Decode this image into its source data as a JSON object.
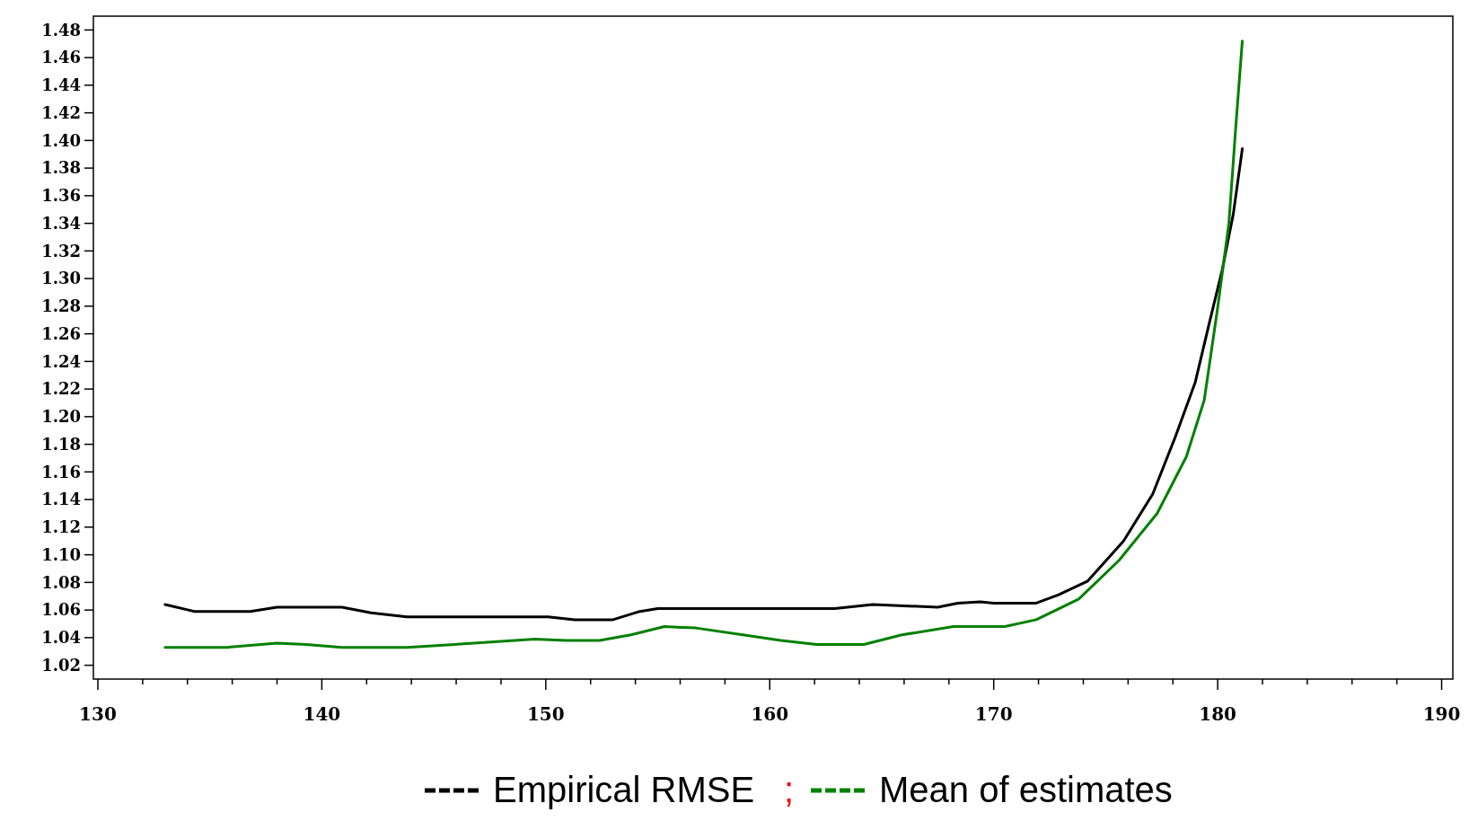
{
  "chart_data": {
    "type": "line",
    "xlim": [
      129.8,
      190.5
    ],
    "ylim": [
      1.01,
      1.49
    ],
    "xticks": [
      130,
      {
        "value": 132,
        "label": null
      },
      {
        "value": 134,
        "label": null
      },
      {
        "value": 136,
        "label": null
      },
      {
        "value": 138,
        "label": null
      },
      140,
      {
        "value": 142,
        "label": null
      },
      {
        "value": 144,
        "label": null
      },
      {
        "value": 146,
        "label": null
      },
      {
        "value": 148,
        "label": null
      },
      150,
      {
        "value": 152,
        "label": null
      },
      {
        "value": 154,
        "label": null
      },
      {
        "value": 156,
        "label": null
      },
      {
        "value": 158,
        "label": null
      },
      160,
      {
        "value": 162,
        "label": null
      },
      {
        "value": 164,
        "label": null
      },
      {
        "value": 166,
        "label": null
      },
      {
        "value": 168,
        "label": null
      },
      170,
      {
        "value": 172,
        "label": null
      },
      {
        "value": 174,
        "label": null
      },
      {
        "value": 176,
        "label": null
      },
      {
        "value": 178,
        "label": null
      },
      180,
      {
        "value": 182,
        "label": null
      },
      {
        "value": 184,
        "label": null
      },
      {
        "value": 186,
        "label": null
      },
      {
        "value": 188,
        "label": null
      },
      190
    ],
    "yticks": [
      1.02,
      1.04,
      1.06,
      1.08,
      {
        "value": 1.1,
        "label": "1.10"
      },
      1.12,
      1.14,
      1.16,
      1.18,
      {
        "value": 1.2,
        "label": "1.20"
      },
      1.22,
      1.24,
      1.26,
      1.28,
      {
        "value": 1.3,
        "label": "1.30"
      },
      1.32,
      1.34,
      1.36,
      1.38,
      {
        "value": 1.4,
        "label": "1.40"
      },
      1.42,
      1.44,
      1.46,
      1.48
    ],
    "grid": false,
    "legend": "bottom",
    "line_style": "solid",
    "marker": "none",
    "annotations": [
      ";"
    ],
    "series": [
      {
        "name": "Empirical RMSE",
        "color": "#000000",
        "x": [
          133,
          134.3,
          136.8,
          138,
          140.9,
          142.2,
          143.8,
          150.1,
          151.3,
          153,
          154.2,
          155,
          162.9,
          164.6,
          167.5,
          168.4,
          169.4,
          170,
          171.9,
          172.9,
          174.2,
          175.8,
          177.1,
          178.1,
          179,
          179.6,
          180.2,
          180.7,
          181.1
        ],
        "values": [
          1.064,
          1.059,
          1.059,
          1.062,
          1.062,
          1.058,
          1.055,
          1.055,
          1.053,
          1.053,
          1.059,
          1.061,
          1.061,
          1.064,
          1.062,
          1.065,
          1.066,
          1.065,
          1.065,
          1.071,
          1.081,
          1.11,
          1.144,
          1.185,
          1.225,
          1.266,
          1.306,
          1.347,
          1.394
        ]
      },
      {
        "name": "Mean of estimates",
        "color": "#008000",
        "x": [
          133,
          135.8,
          138,
          139.3,
          140.9,
          143.8,
          146.8,
          149.5,
          150.9,
          152.4,
          153.8,
          155.3,
          156.7,
          158.8,
          160.5,
          162.1,
          164.2,
          165.9,
          168.2,
          170.5,
          171.9,
          173.8,
          175.6,
          177.3,
          178.6,
          179.4,
          180,
          180.5,
          180.8,
          181.1
        ],
        "values": [
          1.033,
          1.033,
          1.036,
          1.035,
          1.033,
          1.033,
          1.036,
          1.039,
          1.038,
          1.038,
          1.042,
          1.048,
          1.047,
          1.042,
          1.038,
          1.035,
          1.035,
          1.042,
          1.048,
          1.048,
          1.053,
          1.068,
          1.096,
          1.13,
          1.171,
          1.212,
          1.279,
          1.34,
          1.408,
          1.472
        ]
      }
    ]
  }
}
